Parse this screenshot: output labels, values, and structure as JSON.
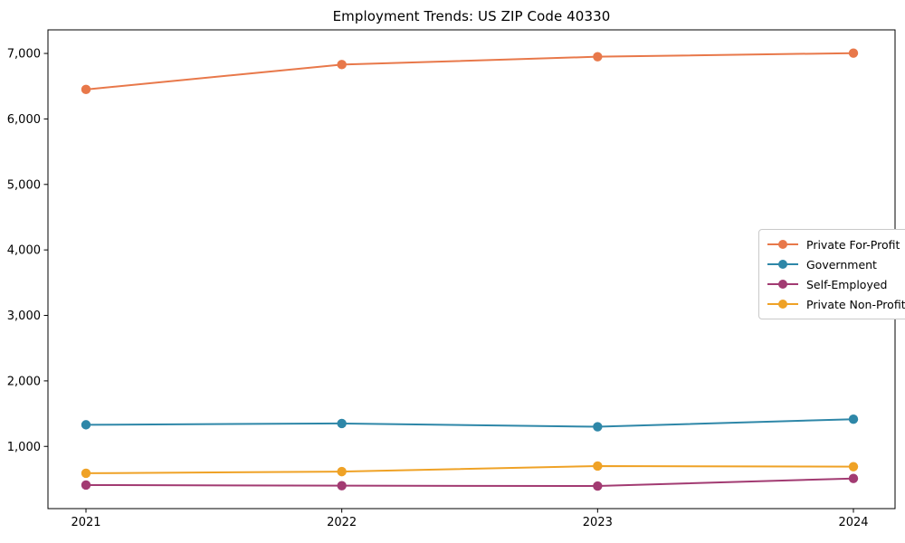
{
  "page": {
    "background": "#ffffff",
    "text_color": "#000000",
    "spine_color": "#000000",
    "legend_border_color": "#c9c9c9"
  },
  "chart_data": {
    "type": "line",
    "title": "Employment Trends: US ZIP Code 40330",
    "x": [
      2021,
      2022,
      2023,
      2024
    ],
    "xtick_labels": [
      "2021",
      "2022",
      "2023",
      "2024"
    ],
    "yticks": [
      1000,
      2000,
      3000,
      4000,
      5000,
      6000,
      7000
    ],
    "ytick_labels": [
      "1,000",
      "2,000",
      "3,000",
      "4,000",
      "5,000",
      "6,000",
      "7,000"
    ],
    "ylim": [
      50,
      7360
    ],
    "xlabel": "",
    "ylabel": "",
    "grid": false,
    "legend_position": "center-right",
    "marker": "circle",
    "series": [
      {
        "name": "Private For-Profit",
        "color": "#E8784A",
        "values": [
          6450,
          6830,
          6950,
          7005
        ]
      },
      {
        "name": "Government",
        "color": "#2E87A8",
        "values": [
          1330,
          1350,
          1300,
          1415
        ]
      },
      {
        "name": "Self-Employed",
        "color": "#A23B72",
        "values": [
          410,
          400,
          395,
          510
        ]
      },
      {
        "name": "Private Non-Profit",
        "color": "#EFA226",
        "values": [
          590,
          615,
          700,
          690
        ]
      }
    ]
  }
}
